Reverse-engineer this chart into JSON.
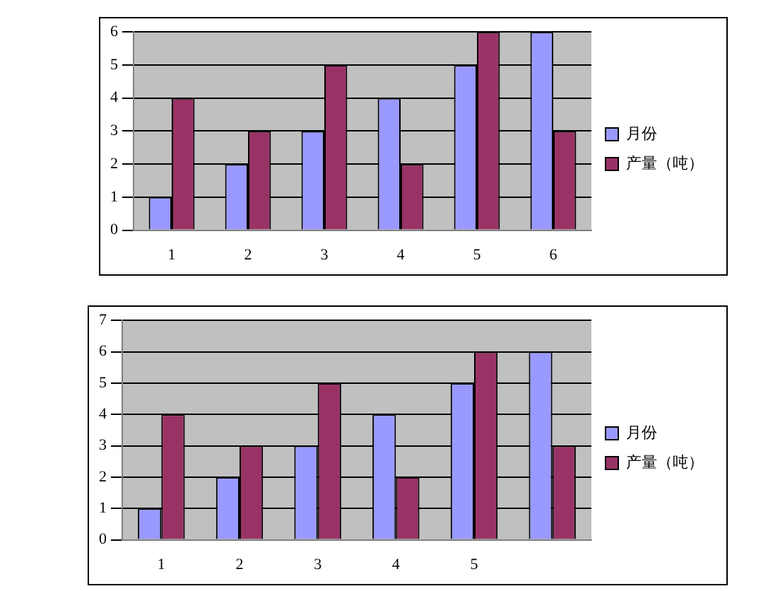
{
  "chart_data": [
    {
      "type": "bar",
      "categories": [
        "1",
        "2",
        "3",
        "4",
        "5",
        "6"
      ],
      "series": [
        {
          "name": "月份",
          "color": "#9999ff",
          "values": [
            1,
            2,
            3,
            4,
            5,
            6
          ]
        },
        {
          "name": "产量（吨）",
          "color": "#993366",
          "values": [
            4,
            3,
            5,
            2,
            6,
            3
          ]
        }
      ],
      "ylim": [
        0,
        6
      ],
      "yticks": [
        0,
        1,
        2,
        3,
        4,
        5,
        6
      ],
      "grid": "y",
      "legend": "right"
    },
    {
      "type": "bar",
      "categories": [
        "1",
        "2",
        "3",
        "4",
        "5",
        null
      ],
      "series": [
        {
          "name": "月份",
          "color": "#9999ff",
          "values": [
            1,
            2,
            3,
            4,
            5,
            6
          ]
        },
        {
          "name": "产量（吨）",
          "color": "#993366",
          "values": [
            4,
            3,
            5,
            2,
            6,
            3
          ]
        }
      ],
      "ylim": [
        0,
        7
      ],
      "yticks": [
        0,
        1,
        2,
        3,
        4,
        5,
        6,
        7
      ],
      "grid": "y",
      "legend": "right"
    }
  ]
}
